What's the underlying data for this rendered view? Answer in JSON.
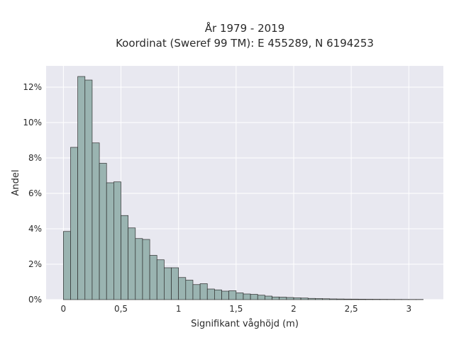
{
  "chart_data": {
    "type": "bar",
    "title_line1": "År 1979 - 2019",
    "title_line2": "Koordinat (Sweref 99 TM): E 455289, N 6194253",
    "xlabel": "Signifikant våghöjd (m)",
    "ylabel": "Andel",
    "xlim": [
      -0.15,
      3.3
    ],
    "ylim": [
      0,
      13.2
    ],
    "x_ticks": [
      0,
      0.5,
      1,
      1.5,
      2,
      2.5,
      3
    ],
    "x_tick_labels": [
      "0",
      "0,5",
      "1",
      "1,5",
      "2",
      "2,5",
      "3"
    ],
    "y_ticks": [
      0,
      2,
      4,
      6,
      8,
      10,
      12
    ],
    "y_tick_labels": [
      "0%",
      "2%",
      "4%",
      "6%",
      "8%",
      "10%",
      "12%"
    ],
    "bin_start": 0,
    "bin_width": 0.0625,
    "values": [
      3.85,
      8.6,
      12.6,
      12.4,
      8.85,
      7.7,
      6.6,
      6.65,
      4.75,
      4.05,
      3.45,
      3.4,
      2.5,
      2.25,
      1.8,
      1.8,
      1.25,
      1.1,
      0.85,
      0.9,
      0.6,
      0.55,
      0.48,
      0.5,
      0.38,
      0.32,
      0.3,
      0.25,
      0.2,
      0.15,
      0.14,
      0.12,
      0.1,
      0.09,
      0.07,
      0.06,
      0.05,
      0.04,
      0.035,
      0.03,
      0.028,
      0.025,
      0.022,
      0.02,
      0.018,
      0.016,
      0.014,
      0.012,
      0.01,
      0.01
    ],
    "grid": true,
    "colors": {
      "bar_fill": "#9ab4b1",
      "bar_edge": "#2e2e2e",
      "plot_bg": "#e8e8f0",
      "grid": "#ffffff"
    }
  }
}
